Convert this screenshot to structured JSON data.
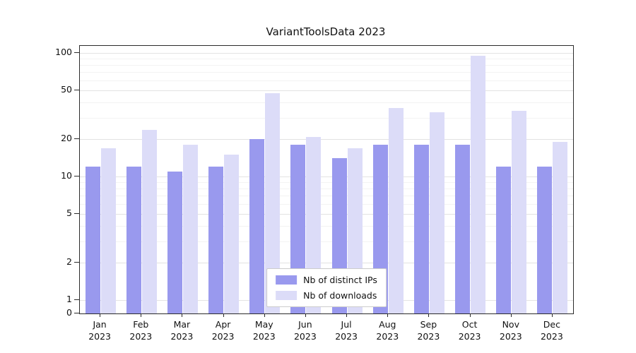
{
  "chart_data": {
    "type": "bar",
    "title": "VariantToolsData 2023",
    "categories": [
      "Jan 2023",
      "Feb 2023",
      "Mar 2023",
      "Apr 2023",
      "May 2023",
      "Jun 2023",
      "Jul 2023",
      "Aug 2023",
      "Sep 2023",
      "Oct 2023",
      "Nov 2023",
      "Dec 2023"
    ],
    "series": [
      {
        "name": "Nb of distinct IPs",
        "color": "#9999ee",
        "values": [
          12,
          12,
          11,
          12,
          20,
          18,
          14,
          18,
          18,
          18,
          12,
          12
        ]
      },
      {
        "name": "Nb of downloads",
        "color": "#dcdcf8",
        "values": [
          17,
          24,
          18,
          15,
          47,
          21,
          17,
          36,
          33,
          95,
          34,
          19
        ]
      }
    ],
    "scale": "log-above-1",
    "yticks": [
      100,
      50,
      20,
      10,
      5,
      2,
      1,
      0
    ],
    "minor_yticks": [
      3,
      4,
      6,
      7,
      8,
      9,
      30,
      40,
      60,
      70,
      80,
      90
    ],
    "ylim": [
      0,
      114
    ],
    "grid": true,
    "legend_position": "lower center"
  }
}
